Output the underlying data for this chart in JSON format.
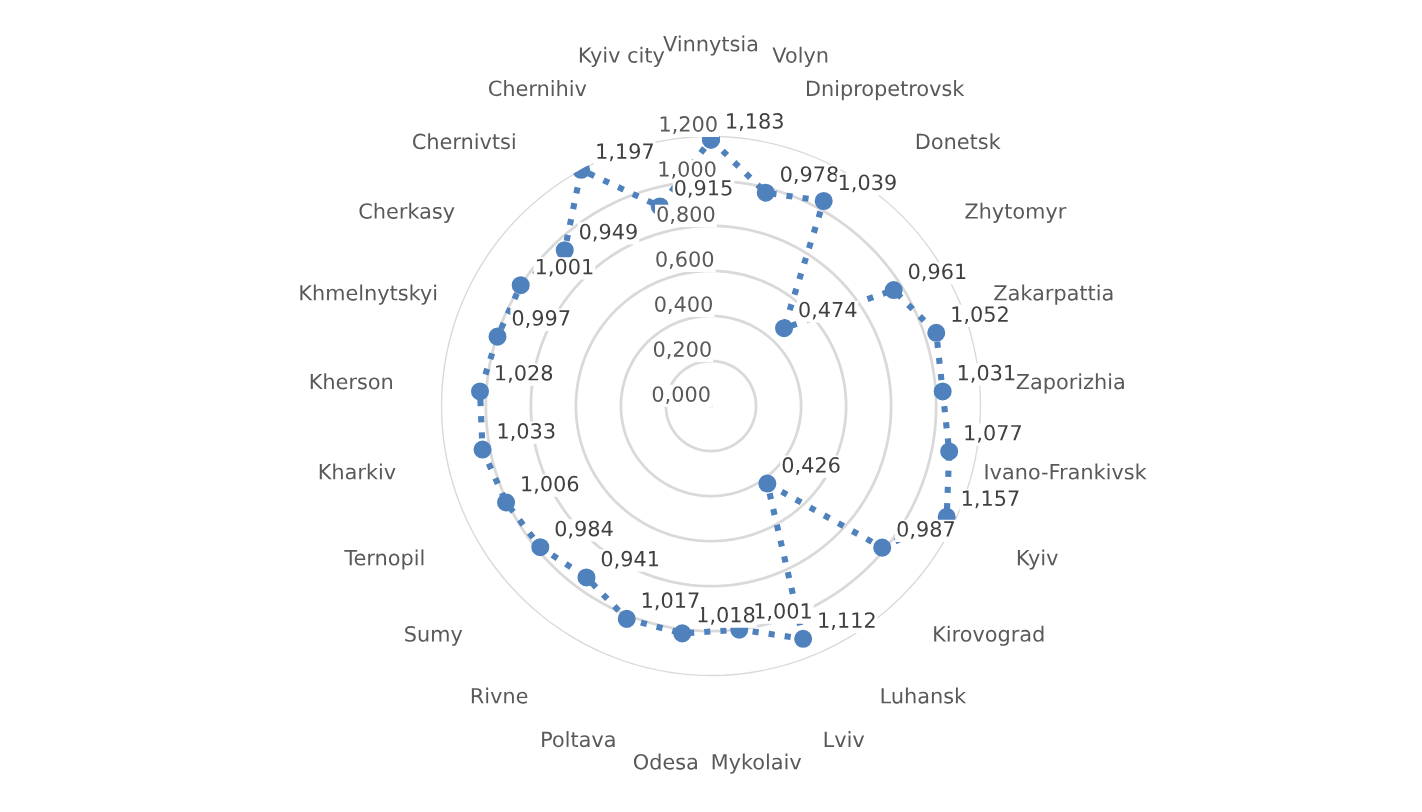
{
  "chart_data": {
    "type": "radar",
    "categories": [
      "Vinnytsia",
      "Volyn",
      "Dnipropetrovsk",
      "Donetsk",
      "Zhytomyr",
      "Zakarpattia",
      "Zaporizhia",
      "Ivano-Frankivsk",
      "Kyiv",
      "Kirovograd",
      "Luhansk",
      "Lviv",
      "Mykolaiv",
      "Odesa",
      "Poltava",
      "Rivne",
      "Sumy",
      "Ternopil",
      "Kharkiv",
      "Kherson",
      "Khmelnytskyi",
      "Cherkasy",
      "Chernivtsi",
      "Chernihiv",
      "Kyiv city"
    ],
    "series": [
      {
        "color": "#4f81bd",
        "values": [
          1.183,
          0.978,
          1.039,
          0.474,
          0.961,
          1.052,
          1.031,
          1.077,
          1.157,
          0.987,
          0.426,
          1.112,
          1.001,
          1.018,
          1.017,
          0.941,
          0.984,
          1.006,
          1.033,
          1.028,
          0.997,
          1.001,
          0.949,
          1.197,
          0.915
        ],
        "value_labels": [
          "1,183",
          "0,978",
          "1,039",
          "0,474",
          "0,961",
          "1,052",
          "1,031",
          "1,077",
          "1,157",
          "0,987",
          "0,426",
          "1,112",
          "1,001",
          "1,018",
          "1,017",
          "0,941",
          "0,984",
          "1,006",
          "1,033",
          "1,028",
          "0,997",
          "1,001",
          "0,949",
          "1,197",
          "0,915"
        ]
      }
    ],
    "ylim": [
      0,
      1.2
    ],
    "yticks": [
      {
        "value": 0,
        "label": "0,000"
      },
      {
        "value": 0.2,
        "label": "0,200"
      },
      {
        "value": 0.4,
        "label": "0,400"
      },
      {
        "value": 0.6,
        "label": "0,600"
      },
      {
        "value": 0.8,
        "label": "0,800"
      },
      {
        "value": 1.0,
        "label": "1,000"
      },
      {
        "value": 1.2,
        "label": "1,200"
      }
    ],
    "grid": true,
    "marker": "circle",
    "line_style": "dotted"
  }
}
